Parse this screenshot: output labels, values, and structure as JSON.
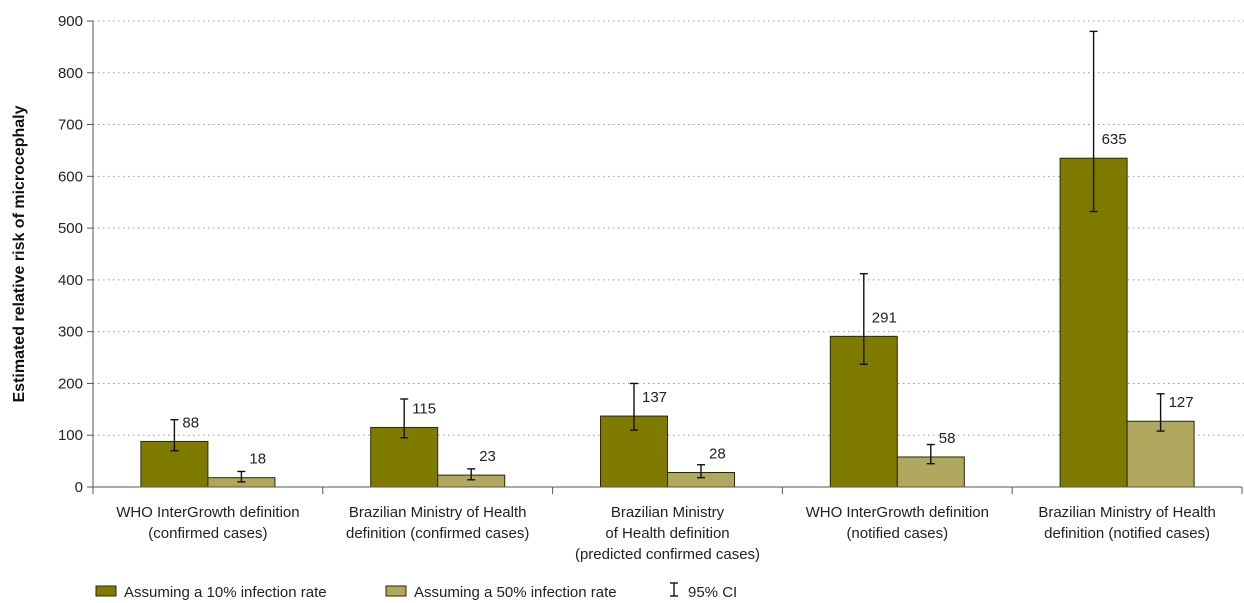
{
  "chart_data": {
    "type": "bar",
    "title": "",
    "xlabel": "",
    "ylabel": "Estimated relative risk of microcephaly",
    "ylim": [
      0,
      900
    ],
    "yticks": [
      0,
      100,
      200,
      300,
      400,
      500,
      600,
      700,
      800,
      900
    ],
    "grid": true,
    "legend_position": "bottom-left",
    "categories": [
      [
        "WHO InterGrowth definition",
        "(confirmed cases)"
      ],
      [
        "Brazilian Ministry of Health",
        "definition (confirmed cases)"
      ],
      [
        "Brazilian Ministry",
        "of Health definition",
        "(predicted confirmed cases)"
      ],
      [
        "WHO InterGrowth definition",
        "(notified cases)"
      ],
      [
        "Brazilian Ministry of Health",
        "definition (notified cases)"
      ]
    ],
    "series": [
      {
        "name": "Assuming a 10% infection rate",
        "color": "#7f7a00",
        "values": [
          88,
          115,
          137,
          291,
          635
        ],
        "ci_low": [
          70,
          95,
          110,
          237,
          532
        ],
        "ci_high": [
          130,
          170,
          200,
          412,
          880
        ]
      },
      {
        "name": "Assuming a 50% infection rate",
        "color": "#b0a85e",
        "values": [
          18,
          23,
          28,
          58,
          127
        ],
        "ci_low": [
          10,
          14,
          18,
          45,
          108
        ],
        "ci_high": [
          30,
          35,
          43,
          82,
          180
        ]
      }
    ],
    "ci_legend": "95% CI"
  }
}
